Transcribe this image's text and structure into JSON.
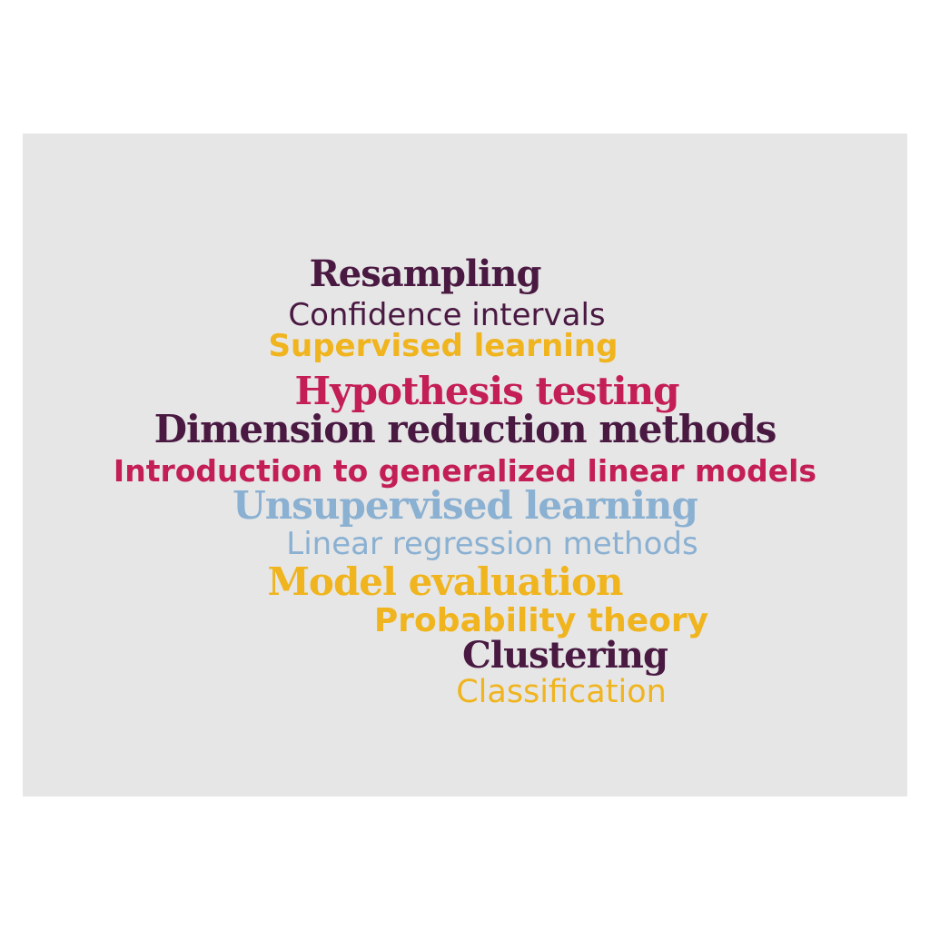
{
  "panel": {
    "background": "#e6e6e6"
  },
  "colors": {
    "plum": "#4a1942",
    "crimson": "#c41e56",
    "gold": "#f0b41e",
    "light_blue": "#8ab0d2"
  },
  "words": {
    "resampling": "Resampling",
    "confidence_intervals": "Confidence intervals",
    "supervised_learning": "Supervised learning",
    "hypothesis_testing": "Hypothesis testing",
    "dimension_reduction": "Dimension reduction methods",
    "glm": "Introduction to generalized linear models",
    "unsupervised_learning": "Unsupervised learning",
    "linear_regression": "Linear regression methods",
    "model_evaluation": "Model evaluation",
    "probability_theory": "Probability theory",
    "clustering": "Clustering",
    "classification": "Classification"
  }
}
